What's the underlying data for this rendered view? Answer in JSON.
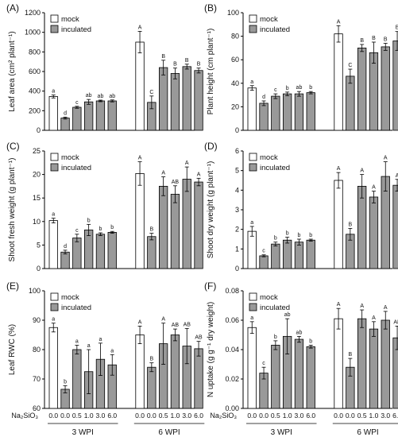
{
  "figure": {
    "x_group_var": "Na₂SiO₃",
    "groups": [
      "3 WPI",
      "6 WPI"
    ],
    "doses": [
      "0.0",
      "0.0",
      "0.5",
      "1.0",
      "3.0",
      "6.0"
    ],
    "legend": [
      "mock",
      "inculated"
    ],
    "colors": {
      "mock": "#ffffff",
      "inoculated": "#999999",
      "axis": "#000000"
    }
  },
  "chart_data": [
    {
      "type": "bar",
      "panel": "(A)",
      "ylabel": "Leaf area (cm² plant⁻¹)",
      "ylim": [
        0,
        1200
      ],
      "yticks": [
        0,
        200,
        400,
        600,
        800,
        1000,
        1200
      ],
      "series": [
        {
          "group": "3 WPI",
          "values": [
            345,
            125,
            235,
            290,
            300,
            300
          ],
          "errors": [
            15,
            10,
            10,
            25,
            8,
            10
          ],
          "letters": [
            "a",
            "d",
            "c",
            "ab",
            "ab",
            "ab"
          ]
        },
        {
          "group": "6 WPI",
          "values": [
            900,
            285,
            640,
            580,
            650,
            610
          ],
          "errors": [
            110,
            65,
            75,
            55,
            25,
            25
          ],
          "letters": [
            "A",
            "C",
            "B",
            "B",
            "B",
            "B"
          ]
        }
      ]
    },
    {
      "type": "bar",
      "panel": "(B)",
      "ylabel": "Plant height (cm plant⁻¹)",
      "ylim": [
        0,
        100
      ],
      "yticks": [
        0,
        20,
        40,
        60,
        80,
        100
      ],
      "series": [
        {
          "group": "3 WPI",
          "values": [
            36,
            23,
            29,
            31,
            31,
            32
          ],
          "errors": [
            2,
            2,
            2,
            1.5,
            2,
            1
          ],
          "letters": [
            "a",
            "d",
            "c",
            "b",
            "ab",
            "b"
          ]
        },
        {
          "group": "6 WPI",
          "values": [
            82,
            46,
            70,
            66,
            71,
            76
          ],
          "errors": [
            7,
            6,
            3,
            9,
            3,
            8
          ],
          "letters": [
            "A",
            "C",
            "B",
            "B",
            "B",
            "B"
          ]
        }
      ]
    },
    {
      "type": "bar",
      "panel": "(C)",
      "ylabel": "Shoot fresh weight (g plant⁻¹)",
      "ylim": [
        0,
        25
      ],
      "yticks": [
        0,
        5,
        10,
        15,
        20,
        25
      ],
      "series": [
        {
          "group": "3 WPI",
          "values": [
            10.2,
            3.5,
            6.5,
            8.2,
            7.3,
            7.7
          ],
          "errors": [
            0.5,
            0.4,
            0.8,
            1.2,
            0.3,
            0.2
          ],
          "letters": [
            "a",
            "d",
            "c",
            "b",
            "b",
            "b"
          ]
        },
        {
          "group": "6 WPI",
          "values": [
            20.2,
            6.8,
            17.5,
            15.8,
            19.0,
            18.4
          ],
          "errors": [
            2.5,
            0.7,
            2.0,
            1.8,
            2.6,
            0.8
          ],
          "letters": [
            "A",
            "B",
            "A",
            "AB",
            "A",
            "A"
          ]
        }
      ]
    },
    {
      "type": "bar",
      "panel": "(D)",
      "ylabel": "Shoot dry weight (g plant⁻¹)",
      "ylim": [
        0,
        6
      ],
      "yticks": [
        0,
        1,
        2,
        3,
        4,
        5,
        6
      ],
      "series": [
        {
          "group": "3 WPI",
          "values": [
            1.9,
            0.65,
            1.25,
            1.45,
            1.35,
            1.45
          ],
          "errors": [
            0.25,
            0.05,
            0.1,
            0.15,
            0.15,
            0.05
          ],
          "letters": [
            "a",
            "c",
            "b",
            "b",
            "b",
            "b"
          ]
        },
        {
          "group": "6 WPI",
          "values": [
            4.5,
            1.75,
            4.2,
            3.65,
            4.7,
            4.25
          ],
          "errors": [
            0.4,
            0.3,
            0.6,
            0.3,
            0.75,
            0.3
          ],
          "letters": [
            "A",
            "B",
            "A",
            "A",
            "A",
            "A"
          ]
        }
      ]
    },
    {
      "type": "bar",
      "panel": "(E)",
      "ylabel": "Leaf RWC (%)",
      "ylim": [
        60,
        100
      ],
      "yticks": [
        60,
        70,
        80,
        90,
        100
      ],
      "series": [
        {
          "group": "3 WPI",
          "values": [
            87.5,
            66.5,
            80.0,
            72.5,
            76.7,
            74.8
          ],
          "errors": [
            1.5,
            1.2,
            1.5,
            7.5,
            5.5,
            3.5
          ],
          "letters": [
            "a",
            "b",
            "a",
            "a",
            "a",
            "a"
          ]
        },
        {
          "group": "6 WPI",
          "values": [
            85.0,
            74.0,
            82.0,
            85.0,
            81.2,
            80.3
          ],
          "errors": [
            3.0,
            1.5,
            7.0,
            2.0,
            6.0,
            2.5
          ],
          "letters": [
            "A",
            "B",
            "A",
            "AB",
            "AB",
            "AB"
          ]
        }
      ]
    },
    {
      "type": "bar",
      "panel": "(F)",
      "ylabel": "N uptake (g g⁻¹ dry weight)",
      "ylim": [
        0,
        0.08
      ],
      "yticks": [
        0,
        0.02,
        0.04,
        0.06,
        0.08
      ],
      "series": [
        {
          "group": "3 WPI",
          "values": [
            0.055,
            0.024,
            0.043,
            0.049,
            0.047,
            0.042
          ],
          "errors": [
            0.004,
            0.004,
            0.003,
            0.012,
            0.002,
            0.001
          ],
          "letters": [
            "a",
            "c",
            "b",
            "ab",
            "ab",
            "b"
          ]
        },
        {
          "group": "6 WPI",
          "values": [
            0.061,
            0.028,
            0.061,
            0.054,
            0.06,
            0.048
          ],
          "errors": [
            0.007,
            0.006,
            0.006,
            0.005,
            0.006,
            0.008
          ],
          "letters": [
            "A",
            "B",
            "A",
            "A",
            "A",
            "AB"
          ]
        }
      ]
    }
  ]
}
